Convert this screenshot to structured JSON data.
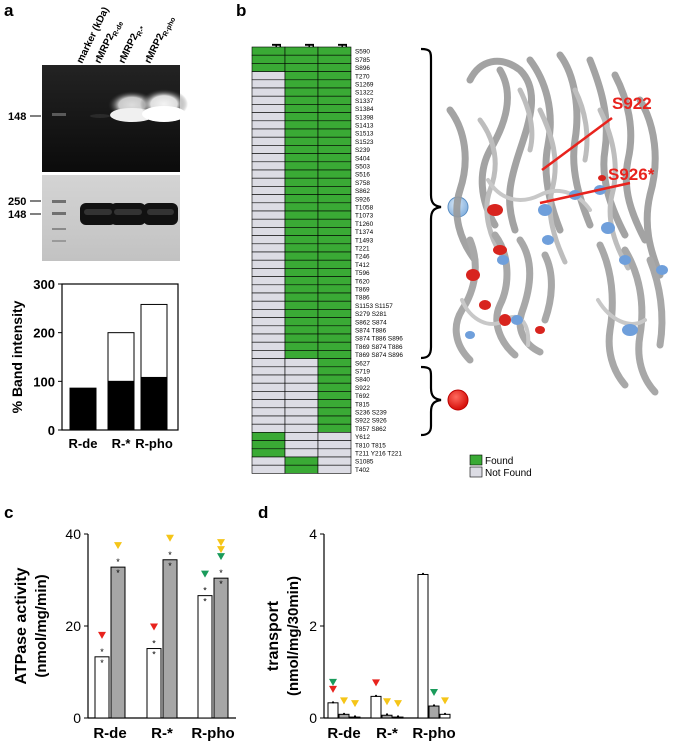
{
  "panels": {
    "a": {
      "label": "a",
      "lane_labels": [
        "marker (kDa)",
        "rMRP2",
        "rMRP2",
        "rMRP2"
      ],
      "lane_subscripts": [
        "",
        "R-de",
        "R-*",
        "R-pho"
      ],
      "blot1_marker": "148",
      "blot2_markers": [
        "250",
        "148"
      ],
      "chart_data": {
        "type": "bar",
        "stacked": true,
        "categories": [
          "R-de",
          "R-*",
          "R-pho"
        ],
        "series": [
          {
            "values": [
              84,
              100,
              108
            ],
            "color": "#000000"
          },
          {
            "values": [
              2,
              100,
              150
            ],
            "color": "#ffffff"
          }
        ],
        "ylabel": "% Band intensity",
        "yticks": [
          0,
          100,
          200,
          300
        ],
        "ylim": [
          0,
          300
        ]
      }
    },
    "b": {
      "label": "b",
      "columns": [
        "R-de",
        "R-*",
        "R-pho"
      ],
      "sites": [
        "S590",
        "S785",
        "S896",
        "T270",
        "S1269",
        "S1322",
        "S1337",
        "S1384",
        "S1398",
        "S1413",
        "S1513",
        "S1523",
        "S239",
        "S404",
        "S503",
        "S516",
        "S758",
        "S862",
        "S926",
        "T1058",
        "T1073",
        "T1260",
        "T1374",
        "T1493",
        "T221",
        "T246",
        "T412",
        "T596",
        "T620",
        "T869",
        "T886",
        "S1153 S1157",
        "S279 S281",
        "S862 S874",
        "S874 T886",
        "S874 T886 S896",
        "T869 S874 T886",
        "T869 S874 S896",
        "S627",
        "S719",
        "S840",
        "S922",
        "T692",
        "T815",
        "S236 S239",
        "S922 S926",
        "T857 S862",
        "Y612",
        "T810 T815",
        "T211 Y216 T221",
        "S1085",
        "T402"
      ],
      "found": [
        [
          1,
          1,
          1
        ],
        [
          1,
          1,
          1
        ],
        [
          1,
          1,
          1
        ],
        [
          0,
          1,
          1
        ],
        [
          0,
          1,
          1
        ],
        [
          0,
          1,
          1
        ],
        [
          0,
          1,
          1
        ],
        [
          0,
          1,
          1
        ],
        [
          0,
          1,
          1
        ],
        [
          0,
          1,
          1
        ],
        [
          0,
          1,
          1
        ],
        [
          0,
          1,
          1
        ],
        [
          0,
          1,
          1
        ],
        [
          0,
          1,
          1
        ],
        [
          0,
          1,
          1
        ],
        [
          0,
          1,
          1
        ],
        [
          0,
          1,
          1
        ],
        [
          0,
          1,
          1
        ],
        [
          0,
          1,
          1
        ],
        [
          0,
          1,
          1
        ],
        [
          0,
          1,
          1
        ],
        [
          0,
          1,
          1
        ],
        [
          0,
          1,
          1
        ],
        [
          0,
          1,
          1
        ],
        [
          0,
          1,
          1
        ],
        [
          0,
          1,
          1
        ],
        [
          0,
          1,
          1
        ],
        [
          0,
          1,
          1
        ],
        [
          0,
          1,
          1
        ],
        [
          0,
          1,
          1
        ],
        [
          0,
          1,
          1
        ],
        [
          0,
          1,
          1
        ],
        [
          0,
          1,
          1
        ],
        [
          0,
          1,
          1
        ],
        [
          0,
          1,
          1
        ],
        [
          0,
          1,
          1
        ],
        [
          0,
          1,
          1
        ],
        [
          0,
          1,
          1
        ],
        [
          0,
          0,
          1
        ],
        [
          0,
          0,
          1
        ],
        [
          0,
          0,
          1
        ],
        [
          0,
          0,
          1
        ],
        [
          0,
          0,
          1
        ],
        [
          0,
          0,
          1
        ],
        [
          0,
          0,
          1
        ],
        [
          0,
          0,
          1
        ],
        [
          0,
          0,
          1
        ],
        [
          1,
          0,
          0
        ],
        [
          1,
          0,
          0
        ],
        [
          1,
          0,
          0
        ],
        [
          0,
          1,
          0
        ],
        [
          0,
          1,
          0
        ]
      ],
      "legend": [
        {
          "label": "Found",
          "color": "#3aaa35"
        },
        {
          "label": "Not Found",
          "color": "#dcdce4"
        }
      ],
      "structure_labels": [
        "S922",
        "S926*"
      ],
      "group_markers": [
        {
          "color": "#9ec3e6"
        },
        {
          "color": "#e8231d"
        }
      ]
    },
    "c": {
      "label": "c",
      "chart_data": {
        "type": "bar",
        "categories": [
          "R-de",
          "R-*",
          "R-pho"
        ],
        "series": [
          {
            "values": [
              13.3,
              15.1,
              26.6
            ],
            "color": "#ffffff"
          },
          {
            "values": [
              32.8,
              34.4,
              30.4
            ],
            "color": "#a6a6a6"
          }
        ],
        "ylabel": "ATPase activity",
        "ylabel2": "(nmol/mg/min)",
        "yticks": [
          0,
          20,
          40
        ],
        "ylim": [
          0,
          40
        ],
        "sig_marker_colors": {
          "red": "#e8231d",
          "green": "#1a9b5b",
          "yellow": "#f5c518"
        }
      }
    },
    "d": {
      "label": "d",
      "chart_data": {
        "type": "bar",
        "categories": [
          "R-de",
          "R-*",
          "R-pho"
        ],
        "series": [
          {
            "values": [
              0.33,
              0.47,
              3.12
            ]
          },
          {
            "values": [
              0.08,
              0.06,
              0.26
            ]
          },
          {
            "values": [
              0.02,
              0.02,
              0.08
            ]
          }
        ],
        "ylabel": "transport",
        "ylabel2": "(nmol/mg/30min)",
        "yticks": [
          0,
          2,
          4
        ],
        "ylim": [
          0,
          4
        ]
      }
    }
  }
}
